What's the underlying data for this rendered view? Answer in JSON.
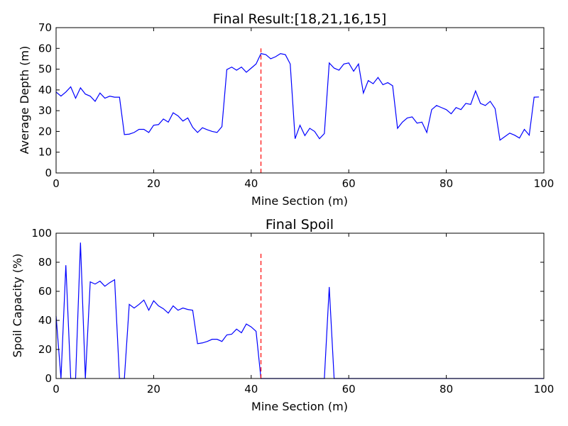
{
  "chart_data": [
    {
      "type": "line",
      "title": "Final Result:[18,21,16,15]",
      "xlabel": "Mine Section (m)",
      "ylabel": "Average Depth (m)",
      "xlim": [
        0,
        100
      ],
      "ylim": [
        0,
        70
      ],
      "xticks": [
        0,
        20,
        40,
        60,
        80,
        100
      ],
      "yticks": [
        0,
        10,
        20,
        30,
        40,
        50,
        60,
        70
      ],
      "grid": false,
      "series_color": "#0000ff",
      "marker_color": "#ff0000",
      "marker_line": {
        "x": 42,
        "y_range": [
          0,
          60
        ]
      },
      "x": [
        0,
        1,
        2,
        3,
        4,
        5,
        6,
        7,
        8,
        9,
        10,
        11,
        12,
        13,
        14,
        15,
        16,
        17,
        18,
        19,
        20,
        21,
        22,
        23,
        24,
        25,
        26,
        27,
        28,
        29,
        30,
        31,
        32,
        33,
        34,
        35,
        36,
        37,
        38,
        39,
        40,
        41,
        42,
        43,
        44,
        45,
        46,
        47,
        48,
        49,
        50,
        51,
        52,
        53,
        54,
        55,
        56,
        57,
        58,
        59,
        60,
        61,
        62,
        63,
        64,
        65,
        66,
        67,
        68,
        69,
        70,
        71,
        72,
        73,
        74,
        75,
        76,
        77,
        78,
        79,
        80,
        81,
        82,
        83,
        84,
        85,
        86,
        87,
        88,
        89,
        90,
        91,
        92,
        93,
        94,
        95,
        96,
        97,
        98,
        99
      ],
      "values": [
        39,
        37,
        39,
        41.5,
        36,
        41,
        38,
        37,
        34.5,
        38.5,
        36,
        37,
        36.5,
        36.5,
        18.5,
        18.7,
        19.5,
        21,
        21,
        19.5,
        23,
        23.3,
        26,
        24.5,
        29,
        27.5,
        25,
        26.5,
        22,
        19.5,
        21.8,
        20.8,
        20,
        19.5,
        22.3,
        49.8,
        51,
        49.5,
        51,
        48.5,
        50.5,
        52.5,
        57.5,
        57,
        55,
        56,
        57.5,
        57,
        52.5,
        16.5,
        23,
        18,
        21.5,
        20,
        16.5,
        19,
        53,
        50.5,
        49.5,
        52.5,
        53,
        49,
        52.5,
        38.5,
        44.5,
        43,
        46,
        42.5,
        43.5,
        42,
        21.5,
        24.5,
        26.5,
        27,
        24,
        24.5,
        19.5,
        30.5,
        32.5,
        31.5,
        30.5,
        28.5,
        31.5,
        30.5,
        33.5,
        33,
        39.5,
        33.5,
        32.5,
        34.5,
        31,
        15.8,
        17.5,
        19.2,
        18.2,
        16.8,
        21,
        18.2,
        36.5,
        36.6
      ]
    },
    {
      "type": "line",
      "title": "Final Spoil",
      "xlabel": "Mine Section (m)",
      "ylabel": "Spoil Capacity (%)",
      "xlim": [
        0,
        100
      ],
      "ylim": [
        0,
        100
      ],
      "xticks": [
        0,
        20,
        40,
        60,
        80,
        100
      ],
      "yticks": [
        0,
        20,
        40,
        60,
        80,
        100
      ],
      "grid": false,
      "series_color": "#0000ff",
      "marker_color": "#ff0000",
      "marker_line": {
        "x": 42,
        "y_range": [
          0,
          86
        ]
      },
      "x": [
        0,
        1,
        2,
        3,
        4,
        5,
        6,
        7,
        8,
        9,
        10,
        11,
        12,
        13,
        14,
        15,
        16,
        17,
        18,
        19,
        20,
        21,
        22,
        23,
        24,
        25,
        26,
        27,
        28,
        29,
        30,
        31,
        32,
        33,
        34,
        35,
        36,
        37,
        38,
        39,
        40,
        41,
        42,
        43,
        44,
        45,
        46,
        47,
        48,
        49,
        50,
        51,
        52,
        53,
        54,
        55,
        56,
        57,
        58,
        59,
        60,
        61,
        62,
        63,
        64,
        65,
        66,
        67,
        68,
        69,
        70,
        71,
        72,
        73,
        74,
        75,
        76,
        77,
        78,
        79,
        80,
        81,
        82,
        83,
        84,
        85,
        86,
        87,
        88,
        89,
        90,
        91,
        92,
        93,
        94,
        95,
        96,
        97,
        98,
        99,
        100
      ],
      "values": [
        43,
        0,
        78,
        0,
        0,
        93.5,
        0,
        66.5,
        65,
        67,
        63.5,
        66,
        68,
        0,
        0,
        51,
        48.5,
        51,
        54,
        47,
        53.5,
        50,
        48,
        45,
        50,
        47,
        48.5,
        47.5,
        47,
        24,
        24.5,
        25.5,
        27,
        27,
        25.5,
        30,
        30.5,
        34,
        31.5,
        37.5,
        35.5,
        32.5,
        0,
        0,
        0,
        0,
        0,
        0,
        0,
        0,
        0,
        0,
        0,
        0,
        0,
        0,
        63,
        0,
        0,
        0,
        0,
        0,
        0,
        0,
        0,
        0,
        0,
        0,
        0,
        0,
        0,
        0,
        0,
        0,
        0,
        0,
        0,
        0,
        0,
        0,
        0,
        0,
        0,
        0,
        0,
        0,
        0,
        0,
        0,
        0,
        0,
        0,
        0,
        0,
        0,
        0,
        0,
        0,
        0,
        0,
        0
      ]
    }
  ]
}
